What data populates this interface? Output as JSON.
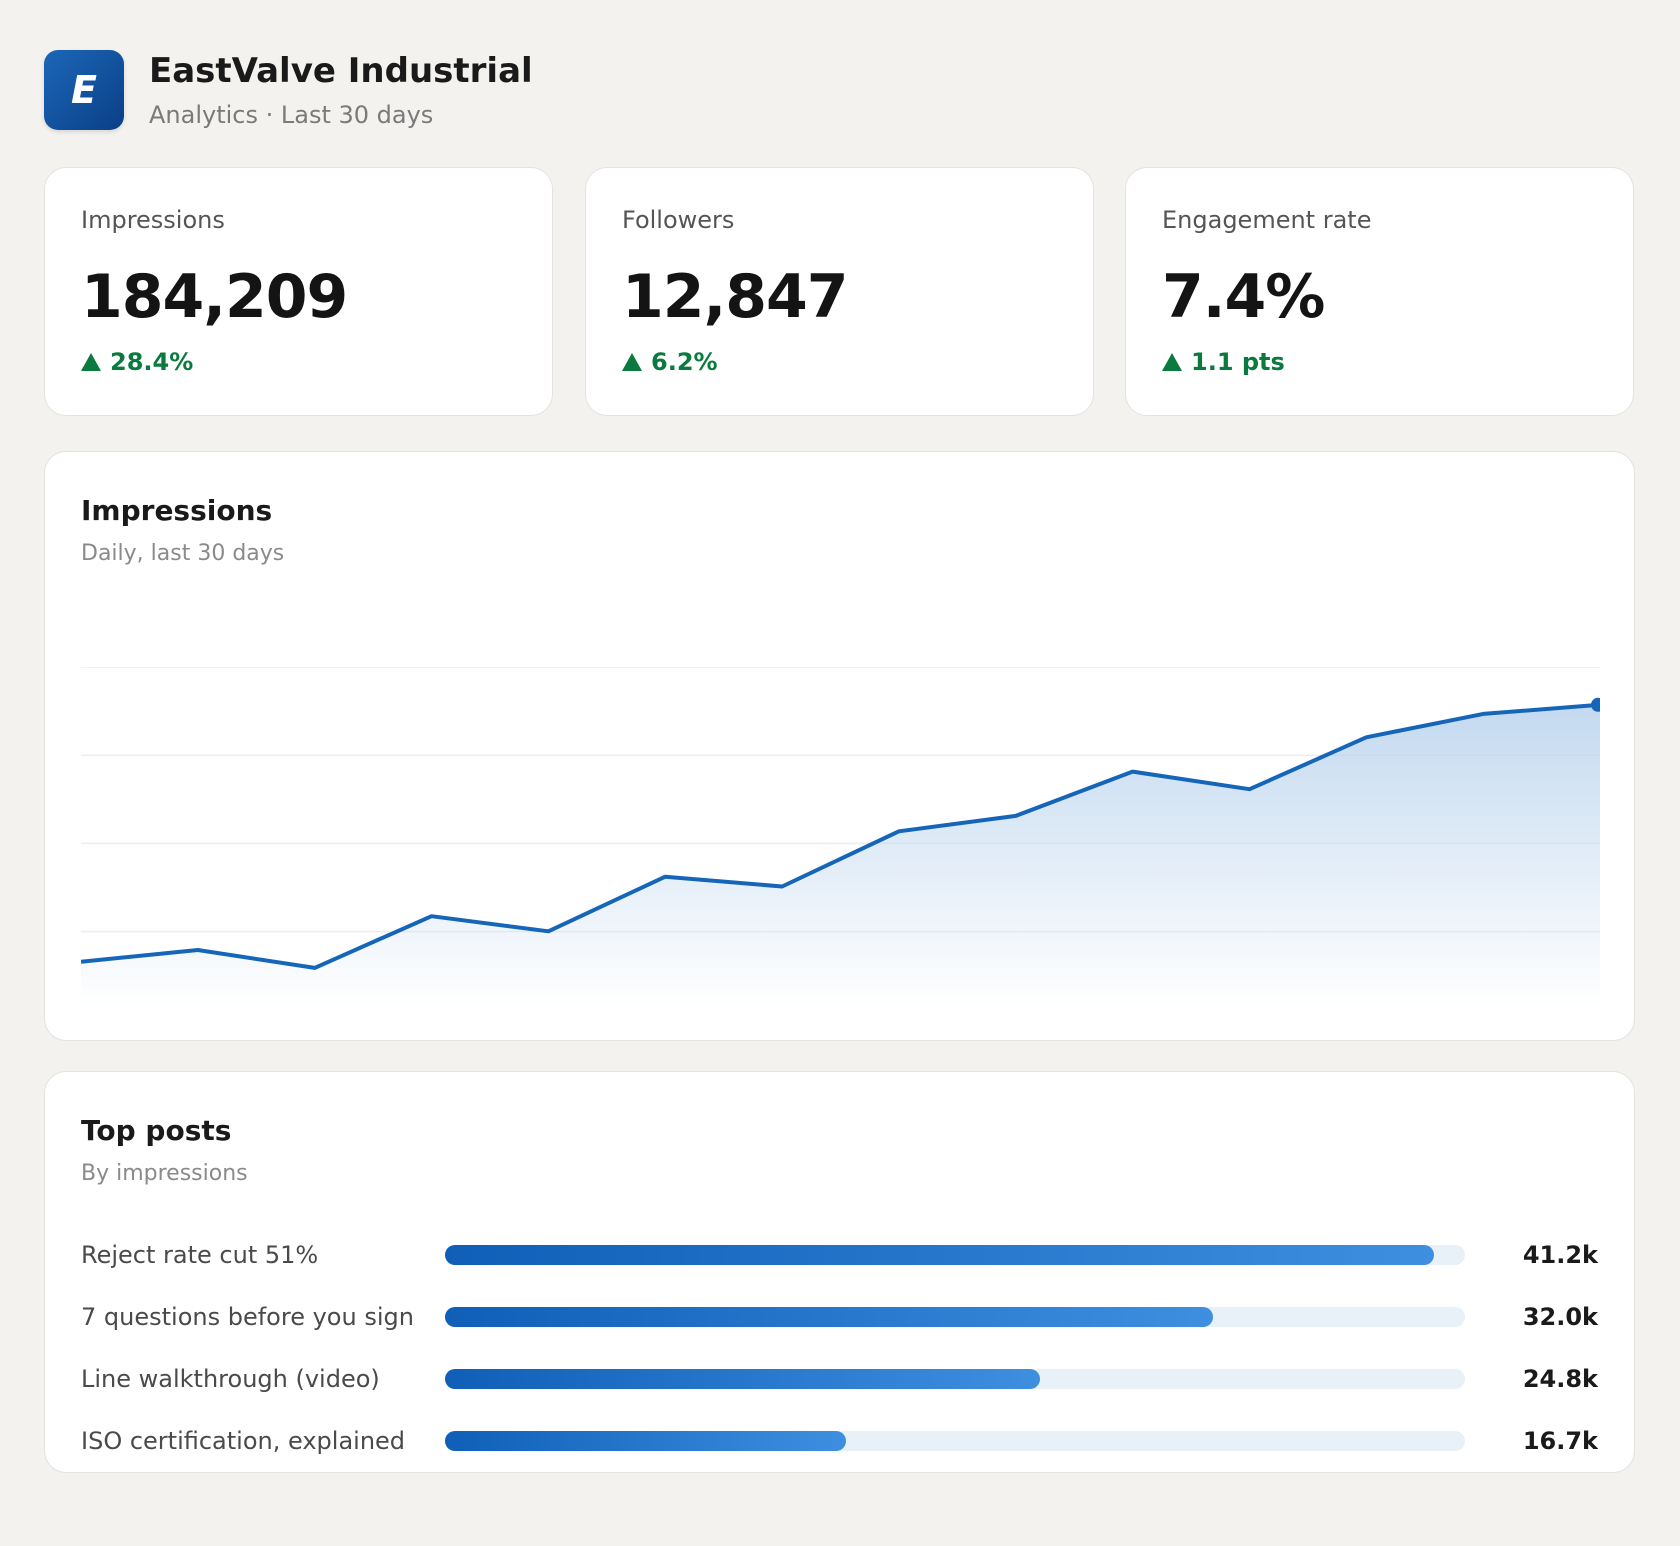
{
  "header": {
    "logo_letter": "E",
    "brand_name": "EastValve Industrial",
    "subtitle": "Analytics · Last 30 days"
  },
  "stats": [
    {
      "label": "Impressions",
      "value": "184,209",
      "delta": "28.4%"
    },
    {
      "label": "Followers",
      "value": "12,847",
      "delta": "6.2%"
    },
    {
      "label": "Engagement rate",
      "value": "7.4%",
      "delta": "1.1 pts"
    }
  ],
  "impressions_chart": {
    "title": "Impressions",
    "subtitle": "Daily, last 30 days"
  },
  "chart_data": {
    "type": "area",
    "x": [
      1,
      2,
      3,
      4,
      5,
      6,
      7,
      8,
      9,
      10,
      11,
      12,
      13,
      14
    ],
    "values": [
      8,
      12.7,
      5.6,
      26.1,
      20.1,
      41.8,
      37.9,
      59.8,
      65.9,
      83.5,
      76.5,
      97.1,
      106.4,
      110
    ],
    "grid": true,
    "gridlines": [
      20,
      55,
      90,
      125
    ],
    "ylim": [
      0,
      125
    ],
    "line_color": "#1565b8",
    "fill_color": "#b9d3ed"
  },
  "top_posts": {
    "title": "Top posts",
    "subtitle": "By impressions",
    "max": 42.5,
    "items": [
      {
        "label": "Reject rate cut 51%",
        "value": 41.2,
        "value_label": "41.2k"
      },
      {
        "label": "7 questions before you sign",
        "value": 32.0,
        "value_label": "32.0k"
      },
      {
        "label": "Line walkthrough (video)",
        "value": 24.8,
        "value_label": "24.8k"
      },
      {
        "label": "ISO certification, explained",
        "value": 16.7,
        "value_label": "16.7k"
      }
    ]
  }
}
